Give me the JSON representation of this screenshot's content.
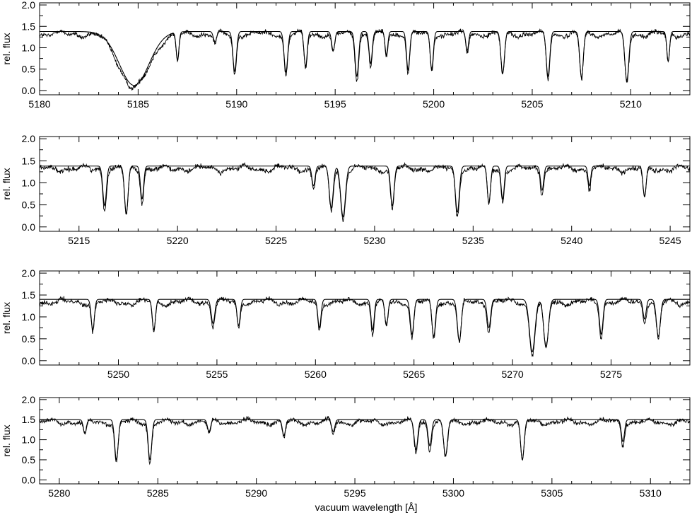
{
  "chart_data": [
    {
      "type": "line",
      "xlim": [
        5180,
        5213
      ],
      "ylim": [
        -0.1,
        2.05
      ],
      "ylabel": "rel. flux",
      "xlabel": "",
      "xticks": [
        5180,
        5185,
        5190,
        5195,
        5200,
        5205,
        5210
      ],
      "yticks": [
        0.0,
        0.5,
        1.0,
        1.5,
        2.0
      ],
      "continuum": 1.38,
      "lines": [
        {
          "w": 5184.8,
          "d": 1.26,
          "s": 0.75
        },
        {
          "w": 5187.0,
          "d": 0.65,
          "s": 0.07
        },
        {
          "w": 5188.9,
          "d": 0.25,
          "s": 0.08
        },
        {
          "w": 5189.9,
          "d": 0.93,
          "s": 0.09
        },
        {
          "w": 5192.5,
          "d": 0.95,
          "s": 0.09
        },
        {
          "w": 5193.5,
          "d": 0.82,
          "s": 0.08
        },
        {
          "w": 5194.9,
          "d": 0.45,
          "s": 0.08
        },
        {
          "w": 5196.1,
          "d": 1.05,
          "s": 0.09
        },
        {
          "w": 5196.8,
          "d": 0.75,
          "s": 0.08
        },
        {
          "w": 5197.6,
          "d": 0.55,
          "s": 0.07
        },
        {
          "w": 5198.7,
          "d": 0.9,
          "s": 0.08
        },
        {
          "w": 5199.9,
          "d": 0.88,
          "s": 0.08
        },
        {
          "w": 5201.7,
          "d": 0.45,
          "s": 0.07
        },
        {
          "w": 5203.5,
          "d": 0.98,
          "s": 0.09
        },
        {
          "w": 5205.8,
          "d": 1.05,
          "s": 0.09
        },
        {
          "w": 5207.5,
          "d": 1.08,
          "s": 0.09
        },
        {
          "w": 5209.8,
          "d": 1.15,
          "s": 0.1
        },
        {
          "w": 5211.9,
          "d": 0.7,
          "s": 0.07
        }
      ],
      "series": [
        {
          "name": "",
          "role": "observed"
        },
        {
          "name": "",
          "role": "model"
        }
      ]
    },
    {
      "type": "line",
      "xlim": [
        5213,
        5246
      ],
      "ylim": [
        -0.1,
        2.05
      ],
      "ylabel": "rel. flux",
      "xlabel": "",
      "xticks": [
        5215,
        5220,
        5225,
        5230,
        5235,
        5240,
        5245
      ],
      "yticks": [
        0.0,
        0.5,
        1.0,
        1.5,
        2.0
      ],
      "continuum": 1.38,
      "lines": [
        {
          "w": 5216.3,
          "d": 0.9,
          "s": 0.09
        },
        {
          "w": 5217.4,
          "d": 1.08,
          "s": 0.09
        },
        {
          "w": 5218.2,
          "d": 0.75,
          "s": 0.08
        },
        {
          "w": 5226.9,
          "d": 0.45,
          "s": 0.08
        },
        {
          "w": 5227.8,
          "d": 0.95,
          "s": 0.1
        },
        {
          "w": 5228.4,
          "d": 1.15,
          "s": 0.12
        },
        {
          "w": 5230.9,
          "d": 0.9,
          "s": 0.09
        },
        {
          "w": 5234.2,
          "d": 1.05,
          "s": 0.1
        },
        {
          "w": 5235.8,
          "d": 0.85,
          "s": 0.08
        },
        {
          "w": 5236.5,
          "d": 0.75,
          "s": 0.08
        },
        {
          "w": 5238.5,
          "d": 0.55,
          "s": 0.08
        },
        {
          "w": 5240.9,
          "d": 0.45,
          "s": 0.07
        },
        {
          "w": 5243.7,
          "d": 0.7,
          "s": 0.08
        }
      ],
      "series": [
        {
          "name": "",
          "role": "observed"
        },
        {
          "name": "",
          "role": "model"
        }
      ]
    },
    {
      "type": "line",
      "xlim": [
        5246,
        5279
      ],
      "ylim": [
        -0.1,
        2.05
      ],
      "ylabel": "rel. flux",
      "xlabel": "",
      "xticks": [
        5250,
        5255,
        5260,
        5265,
        5270,
        5275
      ],
      "yticks": [
        0.0,
        0.5,
        1.0,
        1.5,
        2.0
      ],
      "continuum": 1.4,
      "lines": [
        {
          "w": 5248.7,
          "d": 0.7,
          "s": 0.08
        },
        {
          "w": 5251.8,
          "d": 0.7,
          "s": 0.08
        },
        {
          "w": 5254.8,
          "d": 0.55,
          "s": 0.09
        },
        {
          "w": 5256.1,
          "d": 0.6,
          "s": 0.08
        },
        {
          "w": 5260.2,
          "d": 0.65,
          "s": 0.08
        },
        {
          "w": 5262.9,
          "d": 0.7,
          "s": 0.08
        },
        {
          "w": 5263.6,
          "d": 0.6,
          "s": 0.08
        },
        {
          "w": 5264.9,
          "d": 0.8,
          "s": 0.09
        },
        {
          "w": 5266.0,
          "d": 0.85,
          "s": 0.09
        },
        {
          "w": 5267.3,
          "d": 0.95,
          "s": 0.1
        },
        {
          "w": 5268.8,
          "d": 0.65,
          "s": 0.09
        },
        {
          "w": 5271.0,
          "d": 1.2,
          "s": 0.14
        },
        {
          "w": 5271.7,
          "d": 1.1,
          "s": 0.12
        },
        {
          "w": 5274.5,
          "d": 0.8,
          "s": 0.09
        },
        {
          "w": 5276.7,
          "d": 0.45,
          "s": 0.08
        },
        {
          "w": 5277.4,
          "d": 0.85,
          "s": 0.1
        }
      ],
      "series": [
        {
          "name": "",
          "role": "observed"
        },
        {
          "name": "",
          "role": "model"
        }
      ]
    },
    {
      "type": "line",
      "xlim": [
        5279,
        5312
      ],
      "ylim": [
        -0.1,
        2.05
      ],
      "ylabel": "rel. flux",
      "xlabel": "vacuum wavelength [Å]",
      "xticks": [
        5280,
        5285,
        5290,
        5295,
        5300,
        5305,
        5310
      ],
      "yticks": [
        0.0,
        0.5,
        1.0,
        1.5,
        2.0
      ],
      "continuum": 1.5,
      "lines": [
        {
          "w": 5281.3,
          "d": 0.35,
          "s": 0.08
        },
        {
          "w": 5282.9,
          "d": 1.0,
          "s": 0.09
        },
        {
          "w": 5284.6,
          "d": 1.0,
          "s": 0.09
        },
        {
          "w": 5287.6,
          "d": 0.3,
          "s": 0.08
        },
        {
          "w": 5291.4,
          "d": 0.4,
          "s": 0.08
        },
        {
          "w": 5293.9,
          "d": 0.3,
          "s": 0.08
        },
        {
          "w": 5298.1,
          "d": 0.75,
          "s": 0.09
        },
        {
          "w": 5298.8,
          "d": 0.65,
          "s": 0.09
        },
        {
          "w": 5299.6,
          "d": 0.9,
          "s": 0.1
        },
        {
          "w": 5303.5,
          "d": 1.0,
          "s": 0.09
        },
        {
          "w": 5308.6,
          "d": 0.55,
          "s": 0.08
        }
      ],
      "series": [
        {
          "name": "",
          "role": "observed"
        },
        {
          "name": "",
          "role": "model"
        }
      ]
    }
  ]
}
